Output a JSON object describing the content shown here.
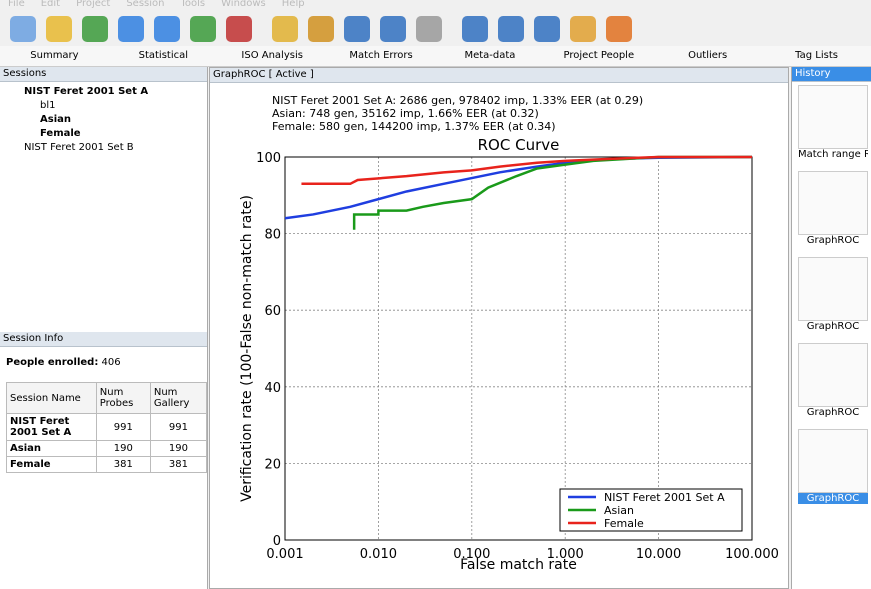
{
  "menu": [
    "File",
    "Edit",
    "Project",
    "Session",
    "Tools",
    "Windows",
    "Help"
  ],
  "tabs": [
    "Summary",
    "Statistical",
    "ISO Analysis",
    "Match Errors",
    "Meta-data",
    "Project People",
    "Outliers",
    "Tag Lists"
  ],
  "sessions": {
    "title": "Sessions",
    "items": [
      {
        "label": "NIST Feret 2001 Set A",
        "children": [
          "bl1",
          "Asian",
          "Female"
        ]
      },
      {
        "label": "NIST Feret 2001 Set B"
      }
    ]
  },
  "session_info": {
    "title": "Session Info",
    "enrolled_label": "People enrolled:",
    "enrolled_value": "406",
    "table": {
      "header": [
        "Session Name",
        "Num Probes",
        "Num Gallery"
      ],
      "rows": [
        [
          "NIST Feret 2001 Set A",
          "991",
          "991"
        ],
        [
          "Asian",
          "190",
          "190"
        ],
        [
          "Female",
          "381",
          "381"
        ]
      ]
    }
  },
  "panel_title": "GraphROC [ Active ]",
  "history": {
    "title": "History",
    "items": [
      "Match range Report",
      "GraphROC",
      "GraphROC",
      "GraphROC",
      "GraphROC"
    ]
  },
  "chart_data": {
    "type": "line",
    "title": "ROC Curve",
    "annotations": [
      "NIST Feret 2001 Set A: 2686 gen, 978402 imp, 1.33% EER (at 0.29)",
      "Asian: 748 gen, 35162 imp, 1.66% EER (at 0.32)",
      "Female: 580 gen, 144200 imp, 1.37% EER (at 0.34)"
    ],
    "x_label": "False match rate",
    "y_label": "Verification rate (100-False non-match rate)",
    "x_scale": "log",
    "xlim": [
      0.001,
      100
    ],
    "xticks": [
      {
        "value": 0.001,
        "label": "0.001"
      },
      {
        "value": 0.01,
        "label": "0.010"
      },
      {
        "value": 0.1,
        "label": "0.100"
      },
      {
        "value": 1,
        "label": "1.000"
      },
      {
        "value": 10,
        "label": "10.000"
      },
      {
        "value": 100,
        "label": "100.000"
      }
    ],
    "ylim": [
      0,
      100
    ],
    "yticks": [
      0,
      20,
      40,
      60,
      80,
      100
    ],
    "grid": true,
    "legend": "lower right",
    "series": [
      {
        "name": "NIST Feret 2001 Set A",
        "color": "#1f3ee0",
        "x": [
          0.001,
          0.002,
          0.005,
          0.01,
          0.02,
          0.05,
          0.1,
          0.2,
          0.5,
          1,
          2,
          5,
          10,
          100
        ],
        "values": [
          84,
          85,
          87,
          89,
          91,
          93,
          94.5,
          96,
          97.5,
          98.5,
          99.2,
          99.6,
          99.8,
          100
        ]
      },
      {
        "name": "Asian",
        "color": "#1a9a1a",
        "x": [
          0.0055,
          0.0055,
          0.01,
          0.01,
          0.02,
          0.03,
          0.05,
          0.1,
          0.15,
          0.3,
          0.5,
          1,
          2,
          10,
          100
        ],
        "values": [
          81,
          85,
          85,
          86,
          86,
          87,
          88,
          89,
          92,
          95,
          97,
          98,
          99,
          100,
          100
        ]
      },
      {
        "name": "Female",
        "color": "#e8231c",
        "x": [
          0.0015,
          0.005,
          0.006,
          0.02,
          0.05,
          0.1,
          0.2,
          0.5,
          1,
          3,
          10,
          100
        ],
        "values": [
          93,
          93,
          94,
          95,
          96,
          96.5,
          97.5,
          98.5,
          99,
          99.5,
          100,
          100
        ]
      }
    ]
  }
}
